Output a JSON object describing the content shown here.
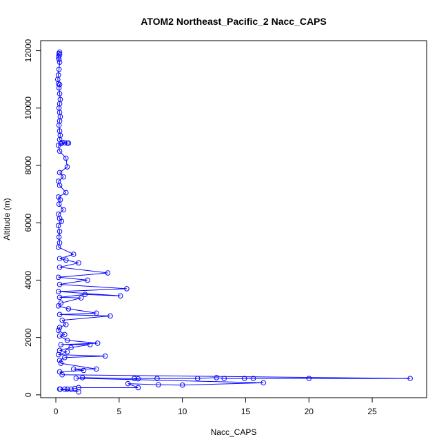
{
  "chart_data": {
    "type": "scatter",
    "title": "ATOM2 Northeast_Pacific_2 Nacc_CAPS",
    "xlabel": "Nacc_CAPS",
    "ylabel": "Altitude (m)",
    "xlim": [
      -1.2,
      29.3
    ],
    "ylim": [
      -100,
      12350
    ],
    "x_ticks": [
      0,
      5,
      10,
      15,
      20,
      25
    ],
    "y_ticks": [
      0,
      2000,
      4000,
      6000,
      8000,
      10000,
      12000
    ],
    "series": [
      {
        "color": "#0000ff",
        "marker": "open-circle",
        "line": true,
        "points": [
          [
            0.3,
            11950
          ],
          [
            0.25,
            11900
          ],
          [
            0.3,
            11850
          ],
          [
            0.2,
            11780
          ],
          [
            0.25,
            11700
          ],
          [
            0.3,
            11600
          ],
          [
            0.25,
            11350
          ],
          [
            0.2,
            11150
          ],
          [
            0.15,
            11000
          ],
          [
            0.2,
            10850
          ],
          [
            0.3,
            10820
          ],
          [
            0.25,
            10700
          ],
          [
            0.3,
            10500
          ],
          [
            0.35,
            10300
          ],
          [
            0.3,
            10150
          ],
          [
            0.25,
            10000
          ],
          [
            0.3,
            9850
          ],
          [
            0.35,
            9700
          ],
          [
            0.3,
            9550
          ],
          [
            0.25,
            9400
          ],
          [
            0.3,
            9200
          ],
          [
            0.35,
            9050
          ],
          [
            0.3,
            8900
          ],
          [
            0.5,
            8800
          ],
          [
            0.7,
            8790
          ],
          [
            0.9,
            8780
          ],
          [
            1.0,
            8780
          ],
          [
            0.4,
            8760
          ],
          [
            0.2,
            8700
          ],
          [
            0.3,
            8500
          ],
          [
            0.8,
            8250
          ],
          [
            0.9,
            7950
          ],
          [
            0.3,
            7750
          ],
          [
            0.6,
            7600
          ],
          [
            0.2,
            7450
          ],
          [
            0.3,
            7300
          ],
          [
            0.8,
            7050
          ],
          [
            0.2,
            6900
          ],
          [
            0.35,
            6800
          ],
          [
            0.25,
            6650
          ],
          [
            0.6,
            6450
          ],
          [
            0.2,
            6300
          ],
          [
            0.3,
            6150
          ],
          [
            0.45,
            6050
          ],
          [
            0.2,
            5900
          ],
          [
            0.3,
            5700
          ],
          [
            0.25,
            5500
          ],
          [
            0.3,
            5300
          ],
          [
            0.2,
            5150
          ],
          [
            1.4,
            4900
          ],
          [
            0.3,
            4750
          ],
          [
            0.8,
            4700
          ],
          [
            1.8,
            4600
          ],
          [
            0.3,
            4450
          ],
          [
            4.1,
            4250
          ],
          [
            0.2,
            4100
          ],
          [
            2.5,
            4000
          ],
          [
            0.3,
            3850
          ],
          [
            5.6,
            3700
          ],
          [
            0.2,
            3600
          ],
          [
            5.1,
            3450
          ],
          [
            2.3,
            3500
          ],
          [
            0.3,
            3400
          ],
          [
            2.0,
            3380
          ],
          [
            0.4,
            3200
          ],
          [
            0.2,
            3100
          ],
          [
            1.0,
            3000
          ],
          [
            3.2,
            2850
          ],
          [
            0.3,
            2800
          ],
          [
            4.3,
            2750
          ],
          [
            0.5,
            2600
          ],
          [
            0.8,
            2450
          ],
          [
            0.3,
            2350
          ],
          [
            0.2,
            2250
          ],
          [
            0.7,
            2100
          ],
          [
            0.3,
            2050
          ],
          [
            0.9,
            1900
          ],
          [
            3.3,
            1800
          ],
          [
            0.4,
            1750
          ],
          [
            2.7,
            1750
          ],
          [
            1.2,
            1650
          ],
          [
            0.3,
            1550
          ],
          [
            0.9,
            1500
          ],
          [
            0.2,
            1400
          ],
          [
            3.9,
            1350
          ],
          [
            0.7,
            1300
          ],
          [
            0.3,
            1200
          ],
          [
            0.4,
            1100
          ],
          [
            3.2,
            900
          ],
          [
            1.4,
            900
          ],
          [
            2.2,
            850
          ],
          [
            0.3,
            800
          ],
          [
            0.5,
            700
          ],
          [
            28.0,
            570
          ],
          [
            20.0,
            570
          ],
          [
            15.6,
            570
          ],
          [
            14.9,
            570
          ],
          [
            13.3,
            570
          ],
          [
            12.7,
            600
          ],
          [
            11.2,
            570
          ],
          [
            8.0,
            570
          ],
          [
            6.2,
            570
          ],
          [
            6.5,
            560
          ],
          [
            2.1,
            600
          ],
          [
            1.6,
            580
          ],
          [
            16.4,
            420
          ],
          [
            10.0,
            340
          ],
          [
            8.1,
            350
          ],
          [
            5.7,
            390
          ],
          [
            6.5,
            250
          ],
          [
            1.8,
            250
          ],
          [
            1.5,
            220
          ],
          [
            1.2,
            200
          ],
          [
            0.9,
            200
          ],
          [
            0.7,
            200
          ],
          [
            0.35,
            200
          ],
          [
            0.3,
            200
          ],
          [
            1.8,
            100
          ]
        ]
      }
    ]
  }
}
